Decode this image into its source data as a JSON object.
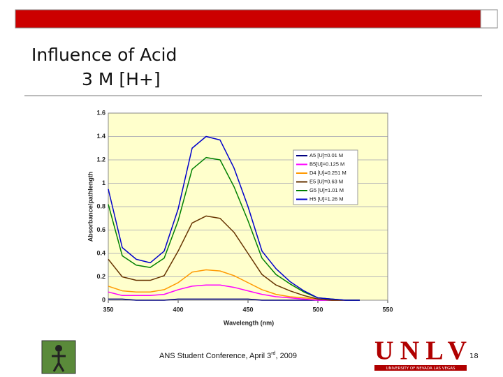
{
  "slide": {
    "title_line1": "Influence of Acid",
    "title_line2": "3 M [H+]",
    "footer_parts": [
      "ANS Student Conference, April 3",
      "rd",
      ", 2009"
    ],
    "page_number": "18",
    "logo_text": "UNLV",
    "logo_subtext": "UNIVERSITY OF NEVADA LAS VEGAS"
  },
  "chart_data": {
    "type": "line",
    "y_label": "Absorbance/pathlength",
    "x_label": "Wavelength (nm)",
    "x": [
      350,
      360,
      370,
      380,
      390,
      400,
      410,
      420,
      430,
      440,
      450,
      460,
      470,
      480,
      490,
      500,
      510,
      520,
      530
    ],
    "xlim": [
      350,
      550
    ],
    "xticks": [
      350,
      400,
      450,
      500,
      550
    ],
    "ylim": [
      0,
      1.6
    ],
    "yticks": [
      0,
      0.2,
      0.4,
      0.6,
      0.8,
      1,
      1.2,
      1.4,
      1.6
    ],
    "grid": true,
    "legend": "right",
    "series": [
      {
        "name": "A5 [U]=0.01 M",
        "color": "#000080",
        "values": [
          0.01,
          0.01,
          0,
          0,
          0,
          0.01,
          0.01,
          0.01,
          0.01,
          0.01,
          0.01,
          0,
          0,
          0,
          0,
          0,
          0,
          0,
          0
        ]
      },
      {
        "name": "B5[U]=0.125 M",
        "color": "#ff00ff",
        "values": [
          0.07,
          0.04,
          0.04,
          0.04,
          0.05,
          0.09,
          0.12,
          0.13,
          0.13,
          0.11,
          0.08,
          0.05,
          0.03,
          0.02,
          0.01,
          0,
          0,
          0,
          0
        ]
      },
      {
        "name": "D4 [U]=0.251 M",
        "color": "#ff9900",
        "values": [
          0.12,
          0.08,
          0.07,
          0.07,
          0.09,
          0.15,
          0.24,
          0.26,
          0.25,
          0.21,
          0.15,
          0.09,
          0.05,
          0.03,
          0.02,
          0.01,
          0,
          0,
          0
        ]
      },
      {
        "name": "E5 [U]=0.63 M",
        "color": "#663300",
        "values": [
          0.35,
          0.2,
          0.17,
          0.17,
          0.21,
          0.42,
          0.66,
          0.72,
          0.7,
          0.58,
          0.4,
          0.22,
          0.13,
          0.08,
          0.04,
          0.01,
          0,
          0,
          0
        ]
      },
      {
        "name": "G5 [U]=1.01 M",
        "color": "#008000",
        "values": [
          0.82,
          0.38,
          0.3,
          0.28,
          0.36,
          0.68,
          1.12,
          1.22,
          1.2,
          0.97,
          0.68,
          0.36,
          0.22,
          0.14,
          0.07,
          0.02,
          0.01,
          0,
          0
        ]
      },
      {
        "name": "H5 [U]=1.26 M",
        "color": "#0000cc",
        "values": [
          0.95,
          0.45,
          0.35,
          0.32,
          0.42,
          0.78,
          1.3,
          1.4,
          1.37,
          1.13,
          0.8,
          0.42,
          0.27,
          0.16,
          0.08,
          0.02,
          0.01,
          0,
          0
        ]
      }
    ]
  }
}
